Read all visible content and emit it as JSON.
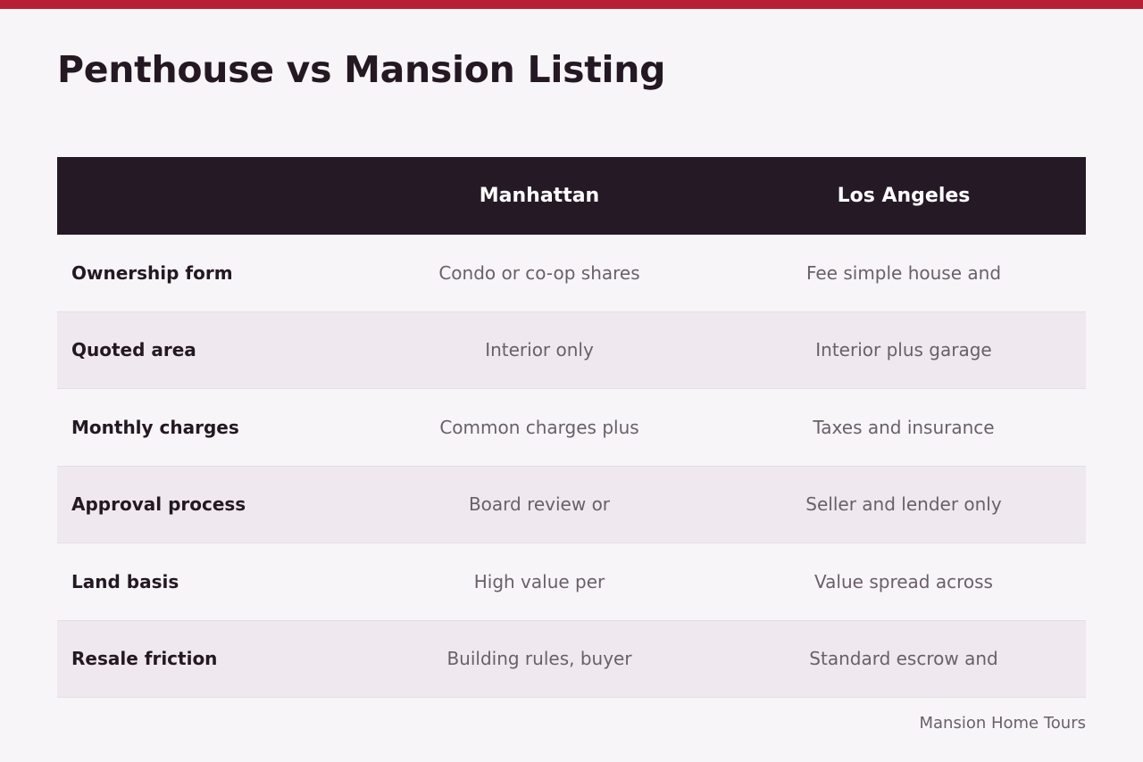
{
  "colors": {
    "accent_bar": "#b81f34",
    "header_bg": "#251925",
    "alt_row_bg": "#efe9ef",
    "page_bg": "#f7f5f8"
  },
  "page": {
    "title": "Penthouse vs Mansion Listing"
  },
  "table": {
    "headers": [
      "",
      "Manhattan",
      "Los Angeles"
    ],
    "rows": [
      {
        "label": "Ownership form",
        "manhattan": "Condo or co-op shares",
        "los_angeles": "Fee simple house and"
      },
      {
        "label": "Quoted area",
        "manhattan": "Interior only",
        "los_angeles": "Interior plus garage"
      },
      {
        "label": "Monthly charges",
        "manhattan": "Common charges plus",
        "los_angeles": "Taxes and insurance"
      },
      {
        "label": "Approval process",
        "manhattan": "Board review or",
        "los_angeles": "Seller and lender only"
      },
      {
        "label": "Land basis",
        "manhattan": "High value per",
        "los_angeles": "Value spread across"
      },
      {
        "label": "Resale friction",
        "manhattan": "Building rules, buyer",
        "los_angeles": "Standard escrow and"
      }
    ]
  },
  "footer": {
    "credit": "Mansion Home Tours"
  }
}
